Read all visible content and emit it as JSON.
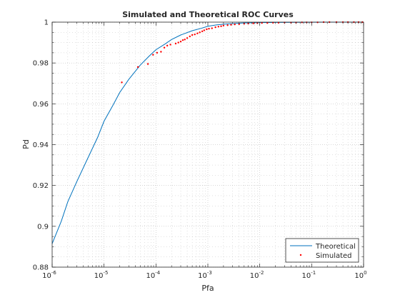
{
  "figure": {
    "background": "#ffffff"
  },
  "chart_data": {
    "type": "line",
    "title": "Simulated and Theoretical ROC Curves",
    "xlabel": "Pfa",
    "ylabel": "Pd",
    "xscale": "log",
    "xlim": [
      1e-06,
      1
    ],
    "ylim": [
      0.88,
      1
    ],
    "x_ticks": [
      {
        "base": "10",
        "exp": "-6"
      },
      {
        "base": "10",
        "exp": "-5"
      },
      {
        "base": "10",
        "exp": "-4"
      },
      {
        "base": "10",
        "exp": "-3"
      },
      {
        "base": "10",
        "exp": "-2"
      },
      {
        "base": "10",
        "exp": "-1"
      },
      {
        "base": "10",
        "exp": "0"
      }
    ],
    "y_ticks": [
      "0.88",
      "0.9",
      "0.92",
      "0.94",
      "0.96",
      "0.98",
      "1"
    ],
    "grid": true,
    "minor_grid": true,
    "legend_position": "bottom-right",
    "colors": {
      "theoretical": "#0072bd",
      "simulated": "#ff0000",
      "axes": "#262626",
      "grid": "#b0b0b0"
    },
    "series": [
      {
        "name": "Theoretical",
        "style": "line",
        "color": "#0072bd",
        "x": [
          1e-06,
          1.5e-06,
          2e-06,
          3e-06,
          5e-06,
          7.5e-06,
          1e-05,
          1.5e-05,
          2e-05,
          3e-05,
          5e-05,
          7.5e-05,
          0.0001,
          0.00015,
          0.0002,
          0.0003,
          0.0005,
          0.00075,
          0.001,
          0.0015,
          0.002,
          0.003,
          0.005,
          0.0075,
          0.01,
          0.02,
          0.05,
          0.1,
          0.2,
          0.5,
          1
        ],
        "y": [
          0.8915,
          0.9025,
          0.912,
          0.922,
          0.934,
          0.9435,
          0.9515,
          0.9595,
          0.9655,
          0.972,
          0.979,
          0.9835,
          0.9865,
          0.9893,
          0.9915,
          0.9937,
          0.9958,
          0.997,
          0.998,
          0.9987,
          0.999,
          0.9993,
          0.9996,
          0.9997,
          0.9998,
          0.99985,
          0.9999,
          0.99995,
          1,
          1,
          1
        ]
      },
      {
        "name": "Simulated",
        "style": "markers",
        "color": "#ff0000",
        "x": [
          2.2e-05,
          4.5e-05,
          7e-05,
          8.8e-05,
          0.000105,
          0.000125,
          0.000145,
          0.000165,
          0.00019,
          0.00024,
          0.00027,
          0.0003,
          0.00033,
          0.00036,
          0.0004,
          0.00045,
          0.0005,
          0.00056,
          0.00063,
          0.0007,
          0.00078,
          0.00085,
          0.00095,
          0.00105,
          0.0012,
          0.0014,
          0.0016,
          0.0018,
          0.002,
          0.0024,
          0.0028,
          0.0033,
          0.004,
          0.005,
          0.006,
          0.0075,
          0.009,
          0.011,
          0.014,
          0.018,
          0.023,
          0.03,
          0.04,
          0.05,
          0.065,
          0.08,
          0.1,
          0.13,
          0.17,
          0.22,
          0.3,
          0.4,
          0.5,
          0.65,
          0.8,
          0.95
        ],
        "y": [
          0.9705,
          0.978,
          0.9795,
          0.984,
          0.985,
          0.9855,
          0.9875,
          0.9885,
          0.989,
          0.9895,
          0.99,
          0.9905,
          0.9912,
          0.9915,
          0.9922,
          0.993,
          0.9937,
          0.994,
          0.9945,
          0.995,
          0.9955,
          0.996,
          0.9965,
          0.9968,
          0.997,
          0.9975,
          0.9978,
          0.998,
          0.9983,
          0.9985,
          0.9987,
          0.9989,
          0.999,
          0.9992,
          0.9993,
          0.9994,
          0.9995,
          0.9996,
          0.9996,
          0.9997,
          0.9997,
          0.9998,
          0.9998,
          0.9998,
          0.9999,
          0.9999,
          0.9999,
          0.9999,
          1,
          1,
          1,
          1,
          1,
          1,
          1,
          1
        ]
      }
    ]
  }
}
